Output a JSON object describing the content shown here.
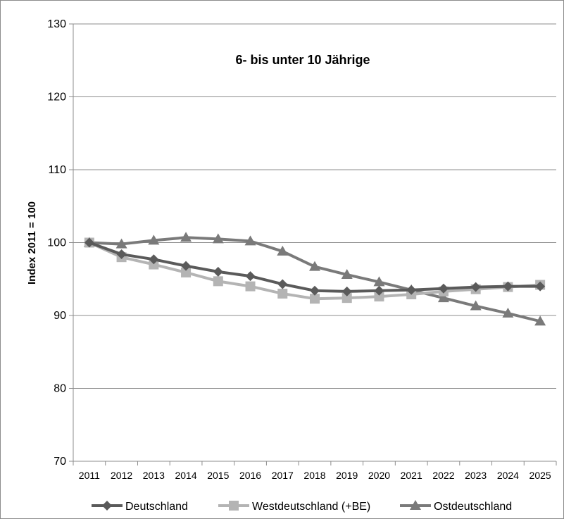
{
  "chart_data": {
    "type": "line",
    "title": "6- bis unter 10 Jährige",
    "xlabel": "",
    "ylabel": "Index 2011 = 100",
    "ylim": [
      70,
      130
    ],
    "yticks": [
      70,
      80,
      90,
      100,
      110,
      120,
      130
    ],
    "grid": true,
    "legend_position": "bottom",
    "x": [
      "2011",
      "2012",
      "2013",
      "2014",
      "2015",
      "2016",
      "2017",
      "2018",
      "2019",
      "2020",
      "2021",
      "2022",
      "2023",
      "2024",
      "2025"
    ],
    "series": [
      {
        "name": "Deutschland",
        "marker": "diamond",
        "color": "#5a5a5a",
        "values": [
          100.0,
          98.4,
          97.7,
          96.8,
          96.0,
          95.4,
          94.3,
          93.4,
          93.3,
          93.4,
          93.5,
          93.7,
          93.9,
          94.0,
          94.0
        ]
      },
      {
        "name": "Westdeutschland (+BE)",
        "marker": "square",
        "color": "#b4b4b4",
        "values": [
          100.0,
          98.0,
          97.0,
          95.9,
          94.7,
          94.0,
          93.0,
          92.3,
          92.4,
          92.6,
          92.9,
          93.3,
          93.6,
          93.9,
          94.2
        ]
      },
      {
        "name": "Ostdeutschland",
        "marker": "triangle",
        "color": "#7a7a7a",
        "values": [
          100.0,
          99.8,
          100.3,
          100.7,
          100.5,
          100.2,
          98.8,
          96.7,
          95.6,
          94.6,
          93.5,
          92.4,
          91.3,
          90.3,
          89.2
        ]
      }
    ]
  }
}
